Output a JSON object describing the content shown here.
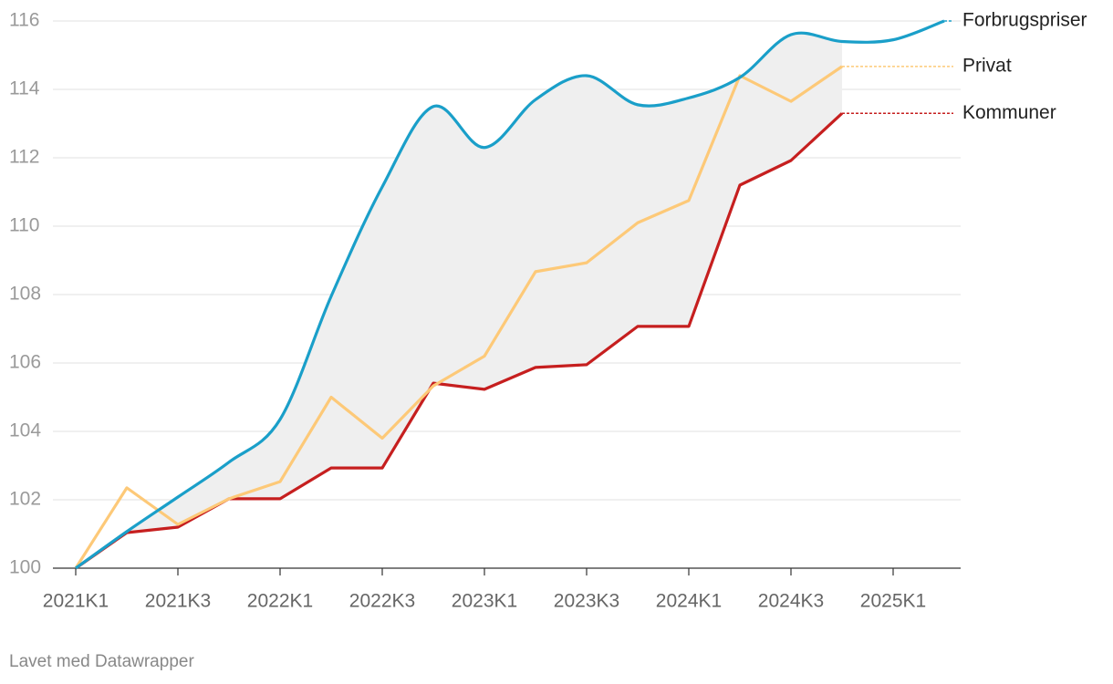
{
  "chart_data": {
    "type": "line",
    "categories": [
      "2021K1",
      null,
      "2021K3",
      null,
      "2022K1",
      null,
      "2022K3",
      null,
      "2023K1",
      null,
      "2023K3",
      null,
      "2024K1",
      null,
      "2024K3",
      null,
      "2025K1",
      null
    ],
    "series": [
      {
        "name": "Forbrugspriser",
        "color": "#1a9fc9",
        "smooth": true,
        "values": [
          100,
          101.07,
          102.08,
          103.1,
          104.35,
          107.95,
          111.15,
          113.5,
          112.3,
          113.7,
          114.4,
          113.55,
          113.75,
          114.35,
          115.6,
          115.4,
          115.45,
          116.0
        ]
      },
      {
        "name": "Privat",
        "color": "#fdc978",
        "smooth": false,
        "values": [
          100,
          102.35,
          101.28,
          102.03,
          102.53,
          105.0,
          103.8,
          105.33,
          106.2,
          108.67,
          108.93,
          110.1,
          110.75,
          114.4,
          113.65,
          114.67,
          null,
          null
        ]
      },
      {
        "name": "Kommuner",
        "color": "#c61f1f",
        "smooth": false,
        "values": [
          100,
          101.04,
          101.2,
          102.03,
          102.03,
          102.93,
          102.93,
          105.41,
          105.23,
          105.87,
          105.95,
          107.07,
          107.07,
          111.2,
          111.92,
          113.3,
          null,
          null
        ]
      }
    ],
    "ylim": [
      100,
      116
    ],
    "yticks": [
      100,
      102,
      104,
      106,
      108,
      110,
      112,
      114,
      116
    ],
    "grid": true,
    "range_fill": "#efefef",
    "footer": "Lavet med Datawrapper"
  }
}
